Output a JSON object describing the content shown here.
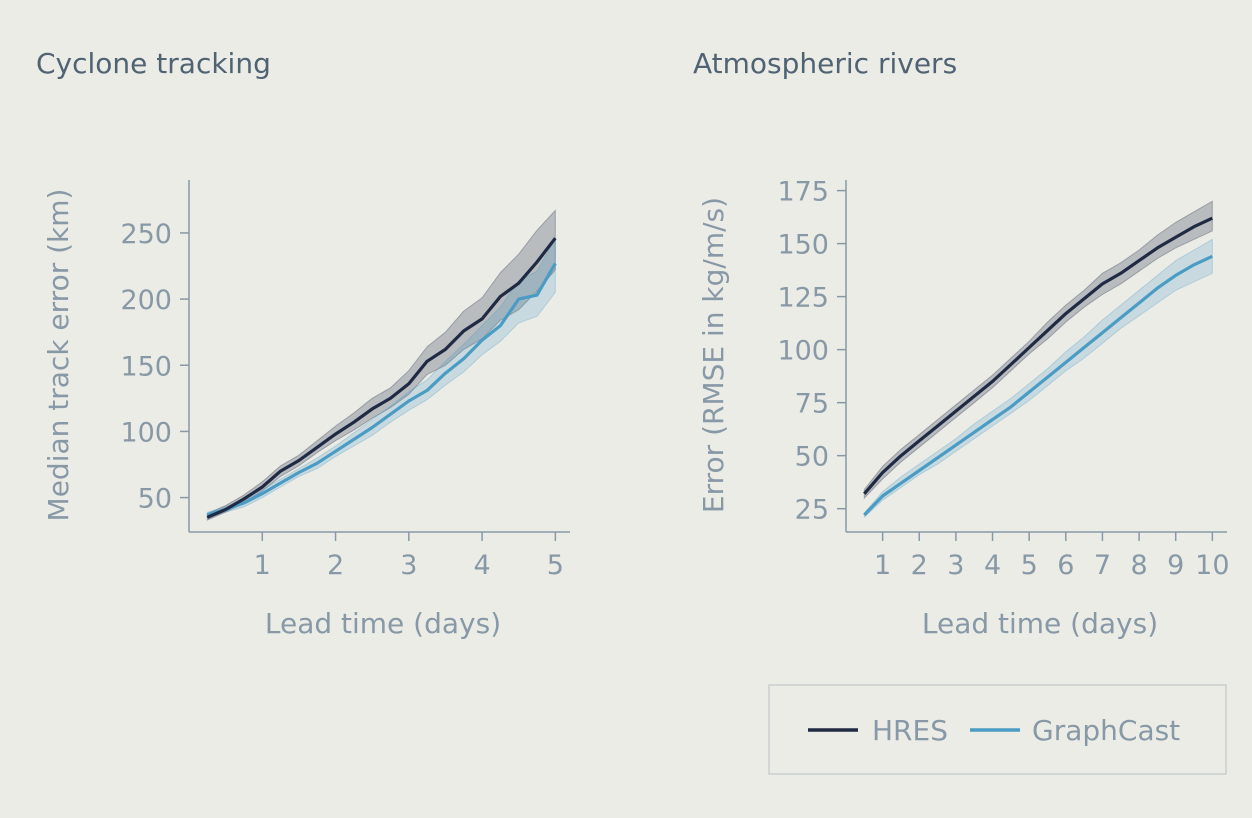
{
  "colors": {
    "background": "#ecece7",
    "axis": "#8799a6",
    "hres": "#1f2a44",
    "graphcast": "#4b9cc4",
    "title": "#4f6373"
  },
  "legend": {
    "items": [
      {
        "label": "HRES",
        "color": "#1f2a44"
      },
      {
        "label": "GraphCast",
        "color": "#4b9cc4"
      }
    ]
  },
  "chart_data": [
    {
      "type": "line",
      "title": "Cyclone tracking",
      "xlabel": "Lead time (days)",
      "ylabel": "Median track error (km)",
      "xlim": [
        0,
        5.2
      ],
      "ylim": [
        24,
        290
      ],
      "xticks": [
        1,
        2,
        3,
        4,
        5
      ],
      "yticks": [
        50,
        100,
        150,
        200,
        250
      ],
      "x": [
        0.25,
        0.5,
        0.75,
        1.0,
        1.25,
        1.5,
        1.75,
        2.0,
        2.25,
        2.5,
        2.75,
        3.0,
        3.25,
        3.5,
        3.75,
        4.0,
        4.25,
        4.5,
        4.75,
        5.0
      ],
      "series": [
        {
          "name": "HRES",
          "values": [
            35,
            41,
            49,
            58,
            70,
            78,
            88,
            98,
            107,
            117,
            125,
            136,
            153,
            162,
            176,
            185,
            202,
            212,
            228,
            246
          ],
          "lower": [
            33,
            39,
            46,
            55,
            66,
            74,
            84,
            93,
            101,
            110,
            118,
            128,
            143,
            150,
            162,
            170,
            184,
            192,
            206,
            222
          ],
          "upper": [
            38,
            44,
            52,
            62,
            74,
            82,
            93,
            104,
            114,
            125,
            133,
            146,
            164,
            175,
            191,
            201,
            220,
            234,
            252,
            267
          ]
        },
        {
          "name": "GraphCast",
          "values": [
            37,
            41,
            46,
            53,
            61,
            69,
            76,
            85,
            94,
            103,
            113,
            123,
            131,
            144,
            155,
            169,
            180,
            200,
            203,
            227
          ],
          "lower": [
            35,
            39,
            43,
            50,
            58,
            66,
            72,
            81,
            89,
            97,
            107,
            116,
            124,
            135,
            145,
            158,
            168,
            182,
            187,
            205
          ],
          "upper": [
            39,
            43,
            49,
            56,
            64,
            72,
            80,
            89,
            99,
            109,
            119,
            130,
            139,
            153,
            166,
            180,
            194,
            214,
            221,
            246
          ]
        }
      ]
    },
    {
      "type": "line",
      "title": "Atmospheric rivers",
      "xlabel": "Lead time (days)",
      "ylabel": "Error (RMSE in kg/m/s)",
      "xlim": [
        0,
        10.4
      ],
      "ylim": [
        14,
        180
      ],
      "xticks": [
        1,
        2,
        3,
        4,
        5,
        6,
        7,
        8,
        9,
        10
      ],
      "yticks": [
        25,
        50,
        75,
        100,
        125,
        150,
        175
      ],
      "x": [
        0.5,
        1.0,
        1.5,
        2.0,
        2.5,
        3.0,
        3.5,
        4.0,
        4.5,
        5.0,
        5.5,
        6.0,
        6.5,
        7.0,
        7.5,
        8.0,
        8.5,
        9.0,
        9.5,
        10.0
      ],
      "series": [
        {
          "name": "HRES",
          "values": [
            32,
            42,
            50,
            57,
            64,
            71,
            78,
            85,
            93,
            101,
            109,
            117,
            124,
            131,
            136,
            142,
            148,
            153,
            158,
            162
          ],
          "lower": [
            30,
            39,
            47,
            54,
            61,
            68,
            75,
            82,
            90,
            98,
            105,
            113,
            120,
            126,
            131,
            137,
            143,
            148,
            152,
            156
          ],
          "upper": [
            34,
            45,
            53,
            60,
            67,
            74,
            81,
            88,
            96,
            104,
            113,
            121,
            128,
            136,
            141,
            147,
            154,
            160,
            165,
            170
          ]
        },
        {
          "name": "GraphCast",
          "values": [
            22,
            31,
            37,
            43,
            49,
            55,
            61,
            67,
            73,
            80,
            87,
            94,
            101,
            108,
            115,
            122,
            129,
            135,
            140,
            144
          ],
          "lower": [
            21,
            29,
            35,
            41,
            46,
            52,
            58,
            64,
            70,
            76,
            83,
            90,
            96,
            103,
            110,
            116,
            122,
            128,
            132,
            136
          ],
          "upper": [
            23,
            33,
            40,
            46,
            52,
            58,
            65,
            71,
            77,
            84,
            91,
            99,
            106,
            114,
            121,
            128,
            135,
            142,
            147,
            152
          ]
        }
      ]
    }
  ]
}
